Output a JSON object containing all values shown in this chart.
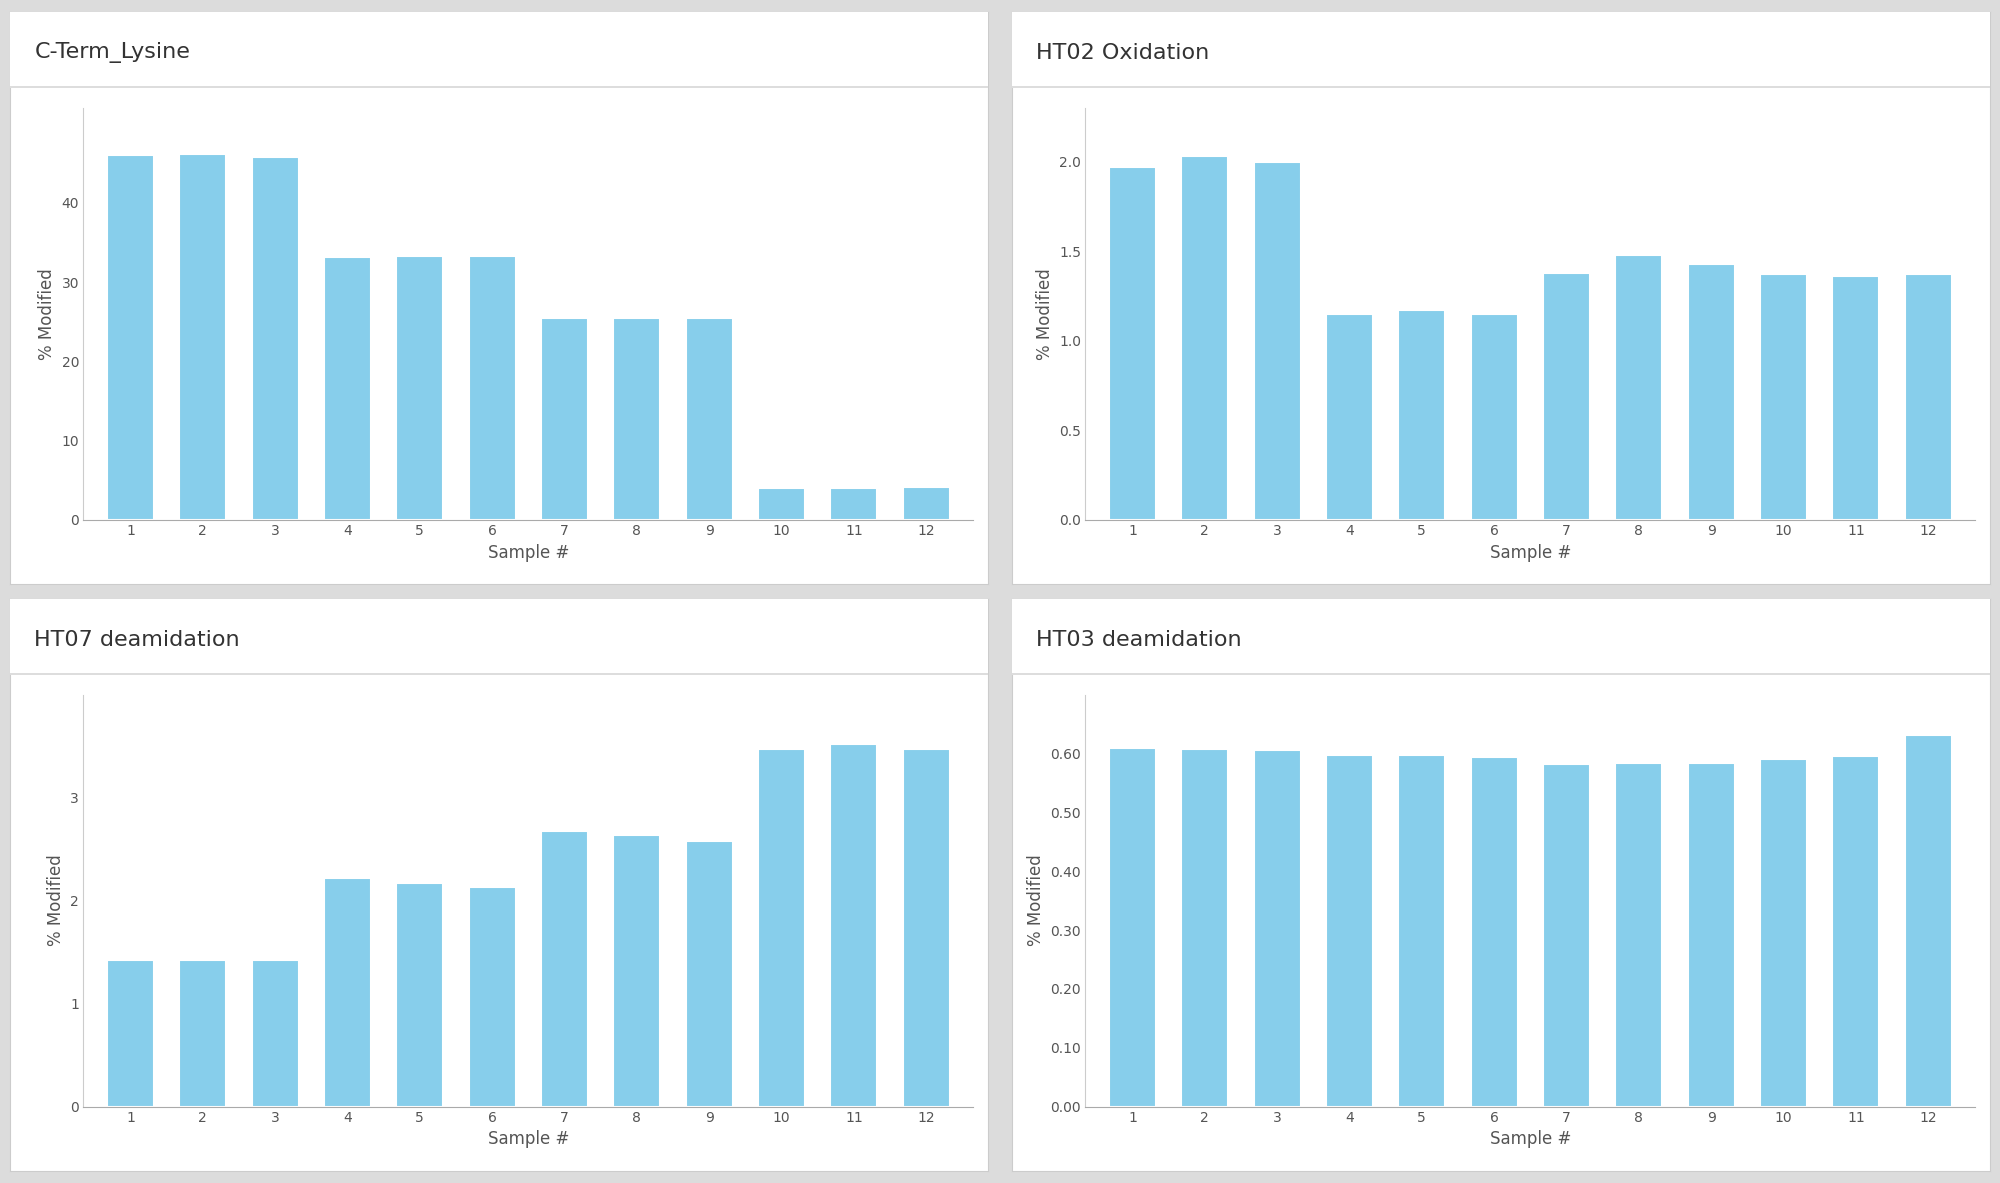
{
  "charts": [
    {
      "title": "C-Term_Lysine",
      "values": [
        46.0,
        46.2,
        45.8,
        33.2,
        33.3,
        33.3,
        25.5,
        25.5,
        25.5,
        4.0,
        4.0,
        4.1
      ],
      "xlabel": "Sample #",
      "ylabel": "% Modified",
      "ylim": [
        0,
        52
      ],
      "yticks": [
        0,
        10,
        20,
        30,
        40
      ]
    },
    {
      "title": "HT02 Oxidation",
      "values": [
        1.97,
        2.03,
        2.0,
        1.15,
        1.17,
        1.15,
        1.38,
        1.48,
        1.43,
        1.37,
        1.36,
        1.37
      ],
      "xlabel": "Sample #",
      "ylabel": "% Modified",
      "ylim": [
        0,
        2.3
      ],
      "yticks": [
        0.0,
        0.5,
        1.0,
        1.5,
        2.0
      ]
    },
    {
      "title": "HT07 deamidation",
      "values": [
        1.42,
        1.42,
        1.42,
        2.22,
        2.17,
        2.13,
        2.68,
        2.64,
        2.58,
        3.47,
        3.52,
        3.47
      ],
      "xlabel": "Sample #",
      "ylabel": "% Modified",
      "ylim": [
        0,
        4.0
      ],
      "yticks": [
        0.0,
        1.0,
        2.0,
        3.0
      ]
    },
    {
      "title": "HT03 deamidation",
      "values": [
        0.61,
        0.608,
        0.606,
        0.597,
        0.597,
        0.594,
        0.582,
        0.583,
        0.584,
        0.59,
        0.595,
        0.632
      ],
      "xlabel": "Sample #",
      "ylabel": "% Modified",
      "ylim": [
        0,
        0.7
      ],
      "yticks": [
        0.0,
        0.1,
        0.2,
        0.3,
        0.4,
        0.5,
        0.6
      ]
    }
  ],
  "bar_color": "#87CEEB",
  "bar_edge_color": "white",
  "fig_background": "#dcdcdc",
  "panel_background": "#ffffff",
  "panel_border_color": "#cccccc",
  "title_fontsize": 16,
  "label_fontsize": 12,
  "tick_fontsize": 10,
  "bar_width": 0.65,
  "n_samples": 12,
  "title_color": "#333333",
  "axis_color": "#888888",
  "tick_color": "#555555",
  "spine_bottom_color": "#aaaaaa",
  "spine_left_color": "#cccccc"
}
